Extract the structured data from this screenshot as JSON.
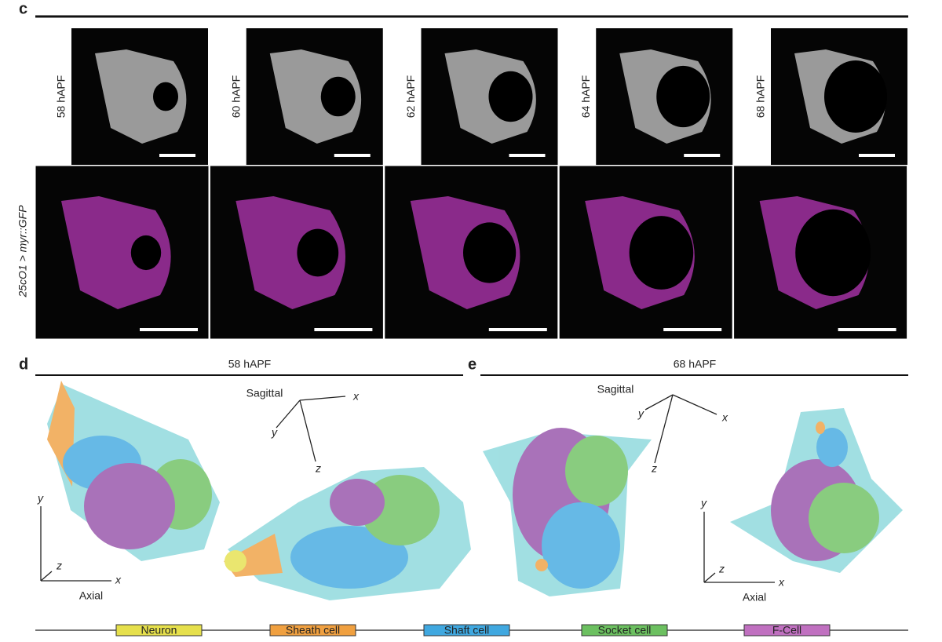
{
  "panel_c": {
    "label": "c",
    "timepoints": [
      "58 hAPF",
      "60 hAPF",
      "62 hAPF",
      "64 hAPF",
      "68 hAPF"
    ],
    "row2_label": "25cO1 > myr::GFP"
  },
  "panel_d": {
    "label": "d",
    "title": "58 hAPF",
    "sagittal": {
      "label": "Sagittal",
      "x": "x",
      "y": "y",
      "z": "z"
    },
    "axial": {
      "label": "Axial",
      "x": "x",
      "y": "y",
      "z": "z"
    }
  },
  "panel_e": {
    "label": "e",
    "title": "68 hAPF",
    "sagittal": {
      "label": "Sagittal",
      "x": "x",
      "y": "y",
      "z": "z"
    },
    "axial": {
      "label": "Axial",
      "x": "x",
      "y": "y",
      "z": "z"
    }
  },
  "legend": [
    {
      "name": "Neuron",
      "color": "#e6e04c"
    },
    {
      "name": "Sheath cell",
      "color": "#f0a040"
    },
    {
      "name": "Shaft cell",
      "color": "#40a8e0"
    },
    {
      "name": "Socket cell",
      "color": "#6cc060"
    },
    {
      "name": "F-Cell",
      "color": "#c070c0"
    }
  ]
}
